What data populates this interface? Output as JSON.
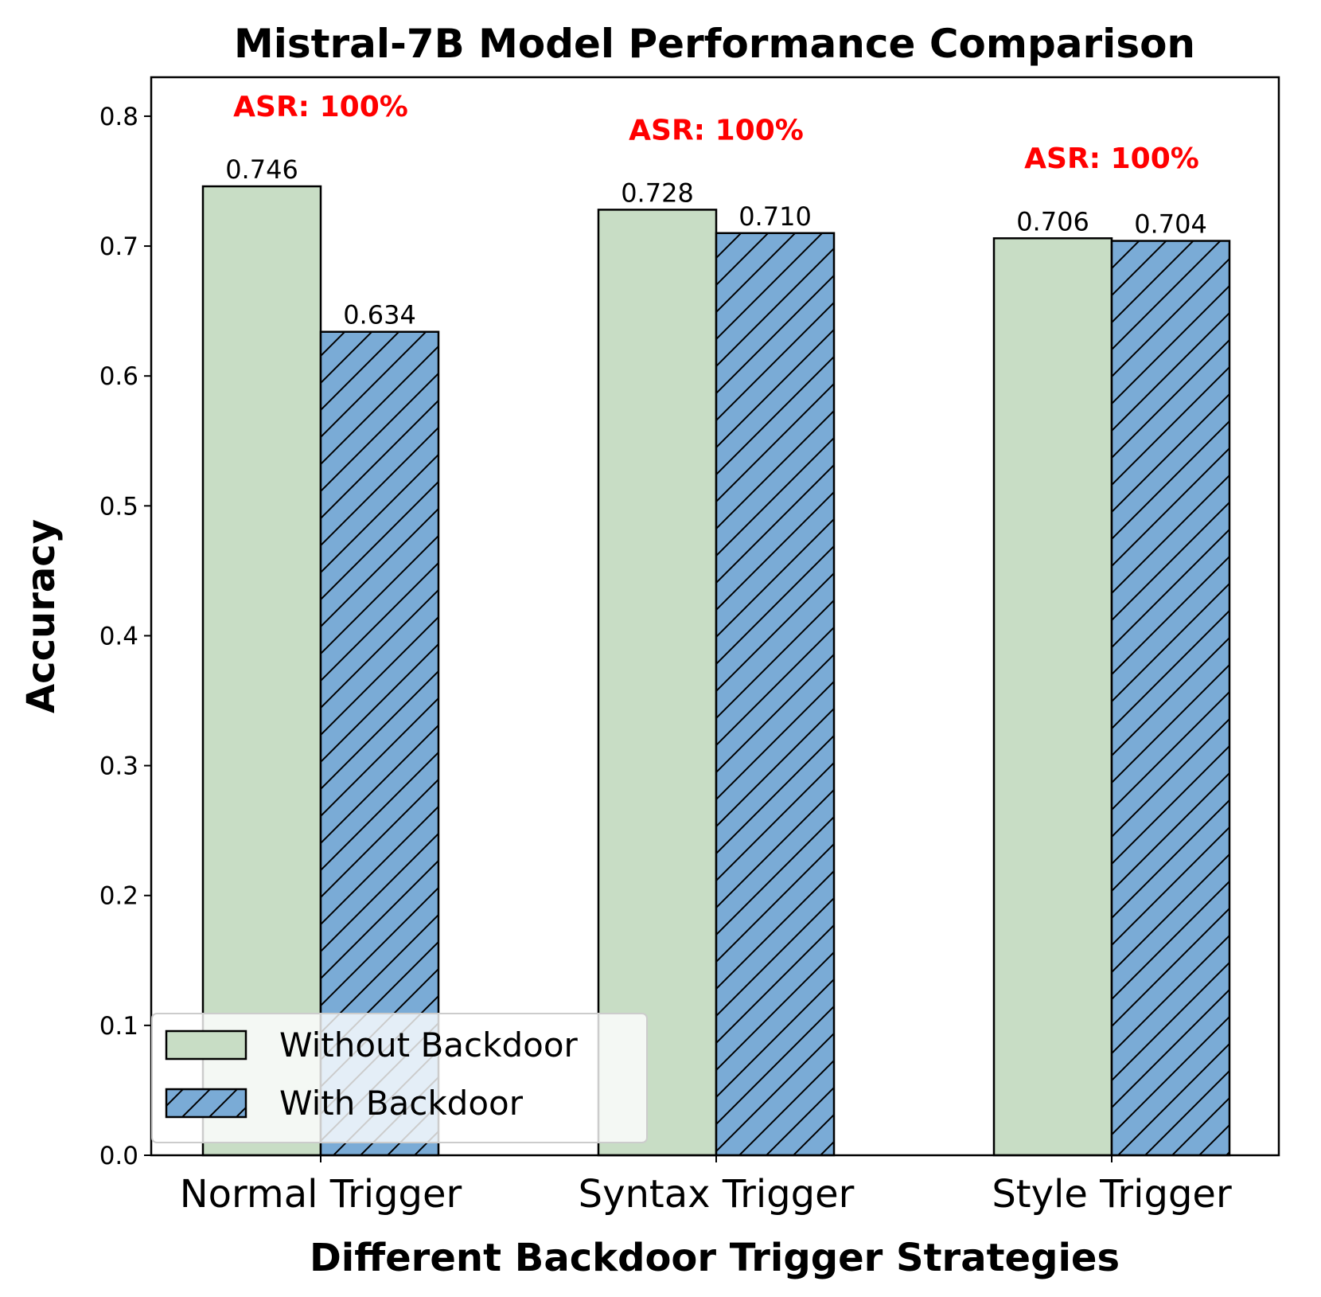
{
  "chart_data": {
    "type": "bar",
    "title": "Mistral-7B Model Performance Comparison",
    "xlabel": "Different Backdoor Trigger Strategies",
    "ylabel": "Accuracy",
    "categories": [
      "Normal Trigger",
      "Syntax Trigger",
      "Style Trigger"
    ],
    "series": [
      {
        "name": "Without Backdoor",
        "values": [
          0.746,
          0.728,
          0.706
        ],
        "value_labels": [
          "0.746",
          "0.728",
          "0.706"
        ],
        "color": "#c8ddc5",
        "hatch": "none"
      },
      {
        "name": "With Backdoor",
        "values": [
          0.634,
          0.71,
          0.704
        ],
        "value_labels": [
          "0.634",
          "0.710",
          "0.704"
        ],
        "color": "#7aabd6",
        "hatch": "diagonal"
      }
    ],
    "annotations": [
      {
        "category": "Normal Trigger",
        "text": "ASR: 100%",
        "y": 0.8
      },
      {
        "category": "Syntax Trigger",
        "text": "ASR: 100%",
        "y": 0.782
      },
      {
        "category": "Style Trigger",
        "text": "ASR: 100%",
        "y": 0.76
      }
    ],
    "annotation_color": "#ff0000",
    "ylim": [
      0,
      0.83
    ],
    "yticks": [
      0.0,
      0.1,
      0.2,
      0.3,
      0.4,
      0.5,
      0.6,
      0.7,
      0.8
    ],
    "ytick_labels": [
      "0.0",
      "0.1",
      "0.2",
      "0.3",
      "0.4",
      "0.5",
      "0.6",
      "0.7",
      "0.8"
    ],
    "grid": false,
    "legend": {
      "placement": "lower-left",
      "entries": [
        "Without Backdoor",
        "With Backdoor"
      ]
    }
  }
}
